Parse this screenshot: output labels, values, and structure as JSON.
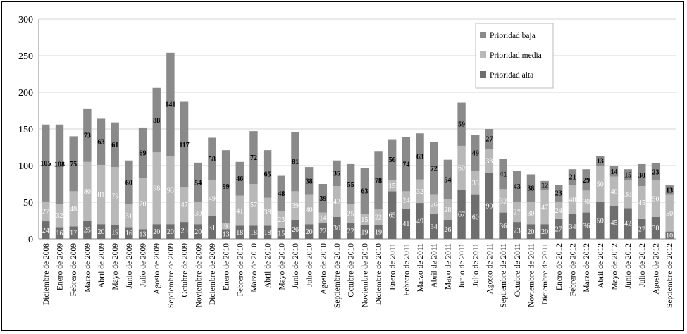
{
  "chart_data": {
    "type": "bar",
    "stacked": true,
    "ylim": [
      0,
      300
    ],
    "yticks": [
      0,
      50,
      100,
      150,
      200,
      250,
      300
    ],
    "grid": true,
    "legend_position": "top-right",
    "categories": [
      "Diciembre de 2008",
      "Enero de 2009",
      "Febrero de 2009",
      "Marzo de 2009",
      "Abril de 2009",
      "Mayo de 2009",
      "Junio de 2009",
      "Julio de 2009",
      "Agosto de 2009",
      "Septiembre de 2009",
      "Octubre de 2009",
      "Noviembre de 2009",
      "Diciembre de 2009",
      "Enero de 2010",
      "Febrero de 2010",
      "Marzo de 2010",
      "Abril de 2010",
      "Mayo de 2010",
      "Junio de 2010",
      "Julio de 2010",
      "Agosto de 2010",
      "Septiembre de 2010",
      "Octubre de 2010",
      "Noviembre de 2010",
      "Diciembre de 2010",
      "Enero de 2011",
      "Febrero de 2011",
      "Marzo de 2011",
      "Abril de 2011",
      "Mayo de 2011",
      "Junio de 2011",
      "Julio de 2011",
      "Agosto de 2011",
      "Septiembre de 2011",
      "Octubre de 2011",
      "Noviembre de 2011",
      "Diciembre de 2011",
      "Enero de 2012",
      "Febrero de 2012",
      "Marzo de 2012",
      "Abril de 2012",
      "Mayo de 2012",
      "Junio de 2012",
      "Julio de 2012",
      "Agosto de 2012",
      "Septiembre de 2012"
    ],
    "series": [
      {
        "name": "Prioridad alta",
        "color": "#6e6e6e",
        "values": [
          24,
          16,
          17,
          25,
          20,
          19,
          16,
          13,
          20,
          20,
          23,
          20,
          31,
          13,
          18,
          18,
          18,
          15,
          26,
          20,
          22,
          30,
          22,
          19,
          19,
          65,
          41,
          49,
          34,
          26,
          67,
          60,
          90,
          36,
          23,
          20,
          20,
          27,
          34,
          36,
          50,
          45,
          42,
          27,
          30,
          10
        ]
      },
      {
        "name": "Prioridad media",
        "color": "#b8b8b8",
        "values": [
          27,
          32,
          48,
          80,
          81,
          79,
          31,
          70,
          98,
          93,
          47,
          30,
          49,
          9,
          41,
          57,
          38,
          23,
          39,
          40,
          14,
          42,
          25,
          15,
          22,
          15,
          24,
          32,
          26,
          28,
          60,
          33,
          33,
          32,
          27,
          30,
          47,
          24,
          40,
          30,
          50,
          40,
          38,
          45,
          50,
          50
        ]
      },
      {
        "name": "Prioridad baja",
        "color": "#8a8a8a",
        "values": [
          105,
          108,
          75,
          73,
          63,
          61,
          60,
          69,
          88,
          141,
          117,
          54,
          58,
          99,
          46,
          72,
          65,
          48,
          81,
          38,
          39,
          35,
          55,
          63,
          78,
          56,
          74,
          63,
          72,
          54,
          59,
          49,
          27,
          41,
          43,
          38,
          12,
          23,
          21,
          29,
          13,
          14,
          15,
          30,
          23,
          13
        ]
      }
    ]
  }
}
